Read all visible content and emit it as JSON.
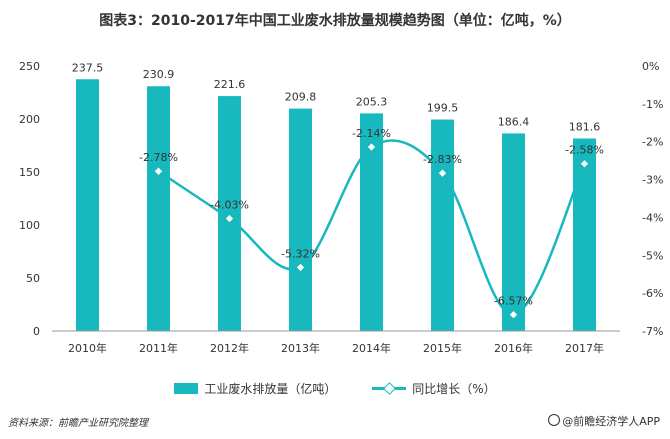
{
  "title": "图表3：2010-2017年中国工业废水排放量规模趋势图（单位：亿吨，%）",
  "colors": {
    "bar": "#17b8be",
    "line": "#17b8be",
    "marker_fill": "#ffffff",
    "axis": "#333333"
  },
  "chart_data": {
    "type": "bar",
    "title": "图表3：2010-2017年中国工业废水排放量规模趋势图（单位：亿吨，%）",
    "categories": [
      "2010年",
      "2011年",
      "2012年",
      "2013年",
      "2014年",
      "2015年",
      "2016年",
      "2017年"
    ],
    "bar_labels": [
      "237.5",
      "230.9",
      "221.6",
      "209.8",
      "205.3",
      "199.5",
      "186.4",
      "181.6"
    ],
    "line_labels": [
      "-2.78%",
      "-4.03%",
      "-5.32%",
      "-2.14%",
      "-2.83%",
      "-6.57%",
      "-2.58%"
    ],
    "series": [
      {
        "name": "工业废水排放量（亿吨）",
        "type": "bar",
        "axis": "left",
        "values": [
          237.5,
          230.9,
          221.6,
          209.8,
          205.3,
          199.5,
          186.4,
          181.6
        ]
      },
      {
        "name": "同比增长（%）",
        "type": "line",
        "axis": "right",
        "smooth": true,
        "marker": "diamond",
        "x": [
          "2011年",
          "2012年",
          "2013年",
          "2014年",
          "2015年",
          "2016年",
          "2017年"
        ],
        "values": [
          -2.78,
          -4.03,
          -5.32,
          -2.14,
          -2.83,
          -6.57,
          -2.58
        ]
      }
    ],
    "ylim": [
      0,
      250
    ],
    "yticks": [
      0,
      50,
      100,
      150,
      200,
      250
    ],
    "y2lim": [
      -7,
      0
    ],
    "y2ticks": [
      0,
      -1,
      -2,
      -3,
      -4,
      -5,
      -6,
      -7
    ],
    "y2ticklabels": [
      "0%",
      "-1%",
      "-2%",
      "-3%",
      "-4%",
      "-5%",
      "-6%",
      "-7%"
    ],
    "legend_position": "bottom",
    "grid": false
  },
  "legend": {
    "bar": "工业废水排放量（亿吨）",
    "line": "同比增长（%）"
  },
  "source": "资料来源：前瞻产业研究院整理",
  "brand": "@前瞻经济学人APP"
}
